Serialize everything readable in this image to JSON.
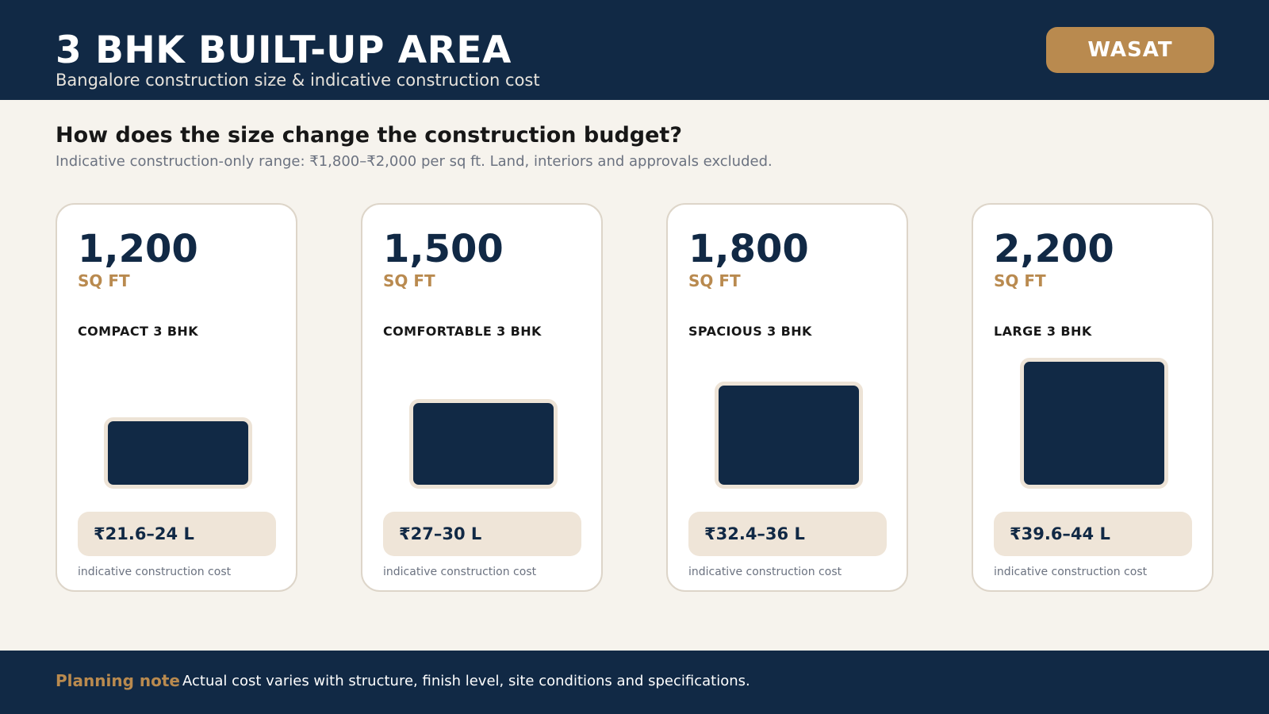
{
  "header": {
    "title": "3 BHK BUILT-UP AREA",
    "subtitle": "Bangalore construction size & indicative construction cost",
    "brand": "WASAT"
  },
  "intro": {
    "question": "How does the size change the construction budget?",
    "note": "Indicative construction-only range: ₹1,800–₹2,000 per sq ft. Land, interiors and approvals excluded."
  },
  "cards": [
    {
      "area": "1,200",
      "unit": "SQ FT",
      "label": "COMPACT 3 BHK",
      "cost": "₹21.6–24 L",
      "caption": "indicative construction cost",
      "area_sqft": 1200
    },
    {
      "area": "1,500",
      "unit": "SQ FT",
      "label": "COMFORTABLE 3 BHK",
      "cost": "₹27–30 L",
      "caption": "indicative construction cost",
      "area_sqft": 1500
    },
    {
      "area": "1,800",
      "unit": "SQ FT",
      "label": "SPACIOUS 3 BHK",
      "cost": "₹32.4–36 L",
      "caption": "indicative construction cost",
      "area_sqft": 1800
    },
    {
      "area": "2,200",
      "unit": "SQ FT",
      "label": "LARGE 3 BHK",
      "cost": "₹39.6–44 L",
      "caption": "indicative construction cost",
      "area_sqft": 2200
    }
  ],
  "footer": {
    "label": "Planning note",
    "text": "Actual cost varies with structure, finish level, site conditions and specifications."
  },
  "colors": {
    "navy": "#112945",
    "gold": "#b98a4f",
    "background": "#f6f3ed",
    "pill": "#efe5d8"
  }
}
